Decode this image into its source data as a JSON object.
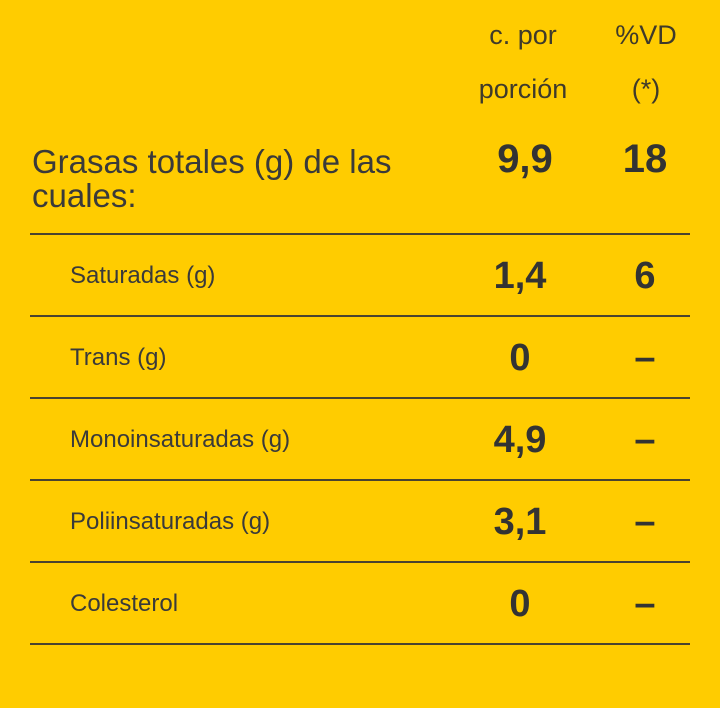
{
  "header": {
    "col1_line1": "c. por",
    "col1_line2": "porción",
    "col2_line1": "%VD",
    "col2_line2": "(*)"
  },
  "main": {
    "label_line1": "Grasas totales (g) de las",
    "label_line2": "cuales:",
    "value": "9,9",
    "vd": "18"
  },
  "rows": [
    {
      "label": "Saturadas (g)",
      "value": "1,4",
      "vd": "6"
    },
    {
      "label": "Trans (g)",
      "value": "0",
      "vd": "–"
    },
    {
      "label": "Monoinsaturadas (g)",
      "value": "4,9",
      "vd": "–"
    },
    {
      "label": "Poliinsaturadas (g)",
      "value": "3,1",
      "vd": "–"
    },
    {
      "label": "Colesterol",
      "value": "0",
      "vd": "–"
    }
  ]
}
